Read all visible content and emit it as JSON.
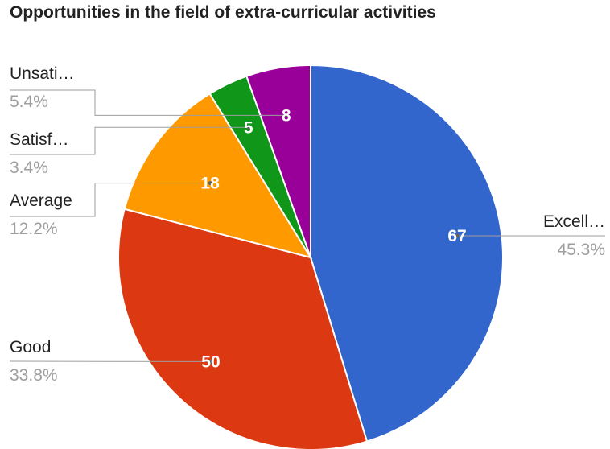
{
  "chart_data": {
    "type": "pie",
    "title": "Opportunities in the field of extra-curricular activities",
    "slices": [
      {
        "label": "Excell…",
        "value": 67,
        "percent_label": "45.3%",
        "color": "#3366cc"
      },
      {
        "label": "Good",
        "value": 50,
        "percent_label": "33.8%",
        "color": "#dc3912"
      },
      {
        "label": "Average",
        "value": 18,
        "percent_label": "12.2%",
        "color": "#ff9900"
      },
      {
        "label": "Satisf…",
        "value": 5,
        "percent_label": "3.4%",
        "color": "#109618"
      },
      {
        "label": "Unsati…",
        "value": 8,
        "percent_label": "5.4%",
        "color": "#990099"
      }
    ],
    "legend": "labeled"
  }
}
